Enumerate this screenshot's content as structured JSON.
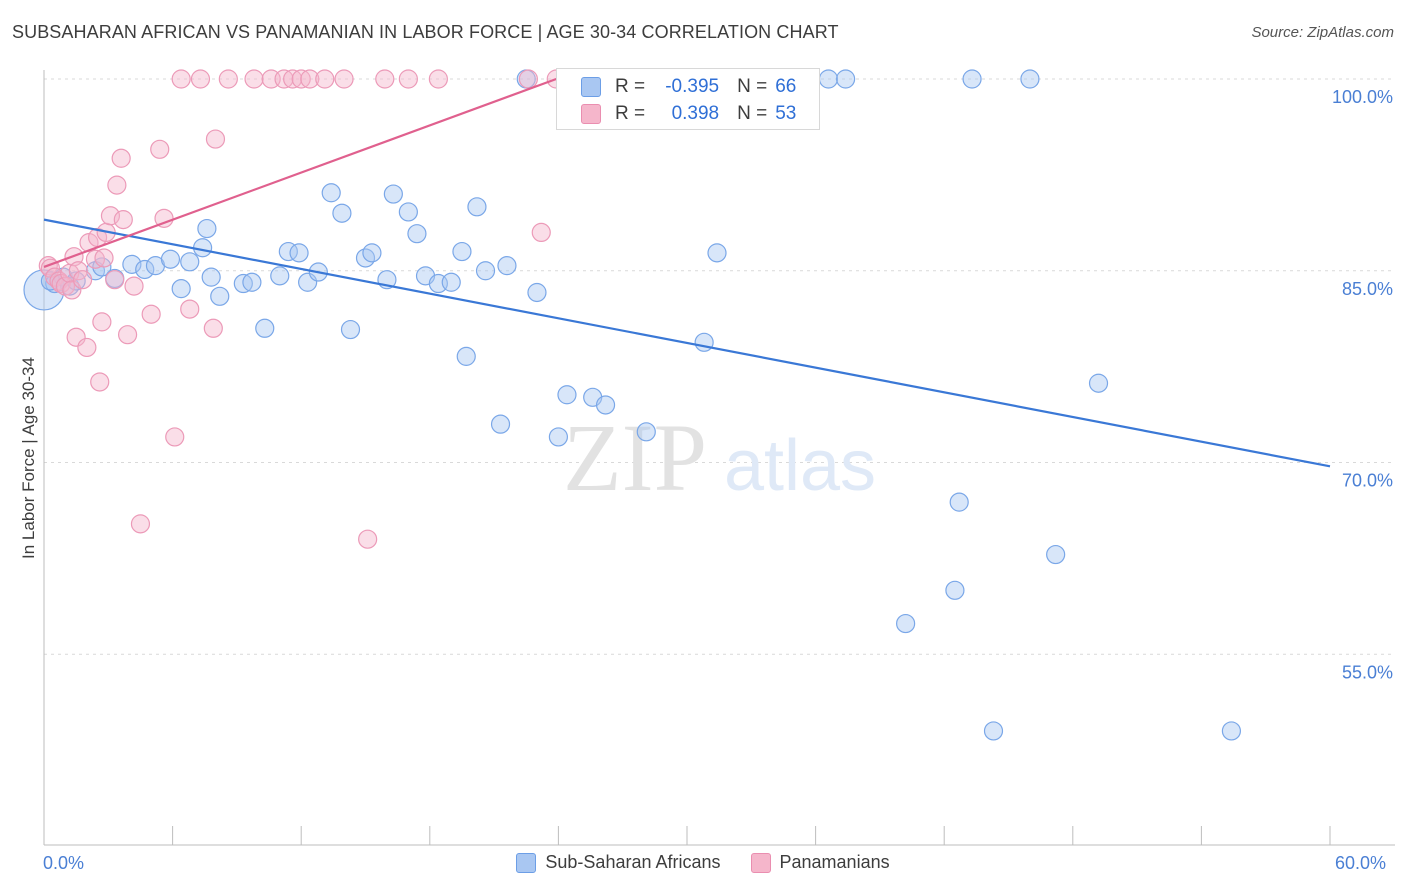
{
  "title": "SUBSAHARAN AFRICAN VS PANAMANIAN IN LABOR FORCE | AGE 30-34 CORRELATION CHART",
  "source": "Source: ZipAtlas.com",
  "watermark": {
    "zip": "ZIP",
    "atlas": "atlas"
  },
  "stats": {
    "blue": {
      "r_label": "R =",
      "r_value": "-0.395",
      "n_label": "N =",
      "n_value": "66"
    },
    "pink": {
      "r_label": "R =",
      "r_value": "0.398",
      "n_label": "N =",
      "n_value": "53"
    }
  },
  "colors": {
    "blue": "#3a78d6",
    "blue_fill": "#a9c7f2",
    "pink": "#e0608e",
    "pink_fill": "#f5b6cb",
    "tick_text": "#4a7fd4",
    "grid": "#d9d9d9"
  },
  "chart_data": {
    "type": "scatter",
    "title": "SUBSAHARAN AFRICAN VS PANAMANIAN IN LABOR FORCE | AGE 30-34 CORRELATION CHART",
    "xlabel": "",
    "ylabel": "In Labor Force | Age 30-34",
    "xlim": [
      0,
      60
    ],
    "ylim": [
      40,
      100
    ],
    "x_tick_labels": [
      "0.0%",
      "60.0%"
    ],
    "y_ticks": [
      {
        "value": 55,
        "label": "55.0%"
      },
      {
        "value": 70,
        "label": "70.0%"
      },
      {
        "value": 85,
        "label": "85.0%"
      },
      {
        "value": 100,
        "label": "100.0%"
      }
    ],
    "grid": true,
    "legend": "bottom",
    "series": [
      {
        "name": "Sub-Saharan Africans",
        "color": "#3a78d6",
        "trend": {
          "x": [
            0,
            60
          ],
          "y": [
            89.0,
            69.7
          ]
        },
        "points": [
          [
            0,
            83.5
          ],
          [
            0.5,
            84.0
          ],
          [
            0.9,
            84.5
          ],
          [
            1.2,
            83.8
          ],
          [
            1.5,
            84.2
          ],
          [
            2.4,
            85.0
          ],
          [
            2.7,
            85.3
          ],
          [
            3.3,
            84.4
          ],
          [
            4.1,
            85.5
          ],
          [
            4.7,
            85.1
          ],
          [
            5.2,
            85.4
          ],
          [
            5.9,
            85.9
          ],
          [
            6.4,
            83.6
          ],
          [
            6.8,
            85.7
          ],
          [
            7.4,
            86.8
          ],
          [
            7.6,
            88.3
          ],
          [
            7.8,
            84.5
          ],
          [
            8.2,
            83.0
          ],
          [
            9.3,
            84.0
          ],
          [
            9.7,
            84.1
          ],
          [
            10.3,
            80.5
          ],
          [
            11.0,
            84.6
          ],
          [
            11.4,
            86.5
          ],
          [
            11.9,
            86.4
          ],
          [
            12.3,
            84.1
          ],
          [
            12.8,
            84.9
          ],
          [
            13.4,
            91.1
          ],
          [
            13.9,
            89.5
          ],
          [
            14.3,
            80.4
          ],
          [
            15.0,
            86.0
          ],
          [
            15.3,
            86.4
          ],
          [
            16.0,
            84.3
          ],
          [
            16.3,
            91.0
          ],
          [
            17.0,
            89.6
          ],
          [
            17.4,
            87.9
          ],
          [
            17.8,
            84.6
          ],
          [
            18.4,
            84.0
          ],
          [
            19.0,
            84.1
          ],
          [
            19.5,
            86.5
          ],
          [
            19.7,
            78.3
          ],
          [
            20.2,
            90.0
          ],
          [
            20.6,
            85.0
          ],
          [
            21.3,
            73.0
          ],
          [
            21.6,
            85.4
          ],
          [
            22.5,
            100.0
          ],
          [
            23.0,
            83.3
          ],
          [
            24.0,
            72.0
          ],
          [
            24.4,
            75.3
          ],
          [
            25.6,
            75.1
          ],
          [
            26.2,
            74.5
          ],
          [
            28.1,
            72.4
          ],
          [
            28.7,
            100.0
          ],
          [
            30.8,
            79.4
          ],
          [
            31.4,
            86.4
          ],
          [
            36.6,
            100.0
          ],
          [
            37.4,
            100.0
          ],
          [
            40.2,
            57.4
          ],
          [
            42.5,
            60.0
          ],
          [
            42.7,
            66.9
          ],
          [
            43.3,
            100.0
          ],
          [
            44.3,
            49.0
          ],
          [
            46.0,
            100.0
          ],
          [
            47.2,
            62.8
          ],
          [
            49.2,
            76.2
          ],
          [
            55.4,
            49.0
          ],
          [
            0.3,
            84.2
          ]
        ]
      },
      {
        "name": "Panamanians",
        "color": "#e0608e",
        "trend": {
          "x": [
            0,
            23.9
          ],
          "y": [
            85.3,
            100.0
          ]
        },
        "points": [
          [
            0.2,
            85.4
          ],
          [
            0.3,
            85.2
          ],
          [
            0.5,
            84.5
          ],
          [
            0.7,
            84.2
          ],
          [
            0.8,
            84.0
          ],
          [
            1.0,
            83.8
          ],
          [
            1.2,
            84.8
          ],
          [
            1.3,
            83.5
          ],
          [
            1.4,
            86.1
          ],
          [
            1.5,
            79.8
          ],
          [
            1.6,
            85.0
          ],
          [
            1.8,
            84.3
          ],
          [
            2.0,
            79.0
          ],
          [
            2.1,
            87.2
          ],
          [
            2.4,
            85.9
          ],
          [
            2.5,
            87.6
          ],
          [
            2.6,
            76.3
          ],
          [
            2.7,
            81.0
          ],
          [
            2.8,
            86.0
          ],
          [
            2.9,
            88.0
          ],
          [
            3.1,
            89.3
          ],
          [
            3.3,
            84.3
          ],
          [
            3.4,
            91.7
          ],
          [
            3.6,
            93.8
          ],
          [
            3.7,
            89.0
          ],
          [
            3.9,
            80.0
          ],
          [
            4.2,
            83.8
          ],
          [
            4.5,
            65.2
          ],
          [
            5.0,
            81.6
          ],
          [
            5.4,
            94.5
          ],
          [
            5.6,
            89.1
          ],
          [
            6.1,
            72.0
          ],
          [
            6.4,
            100.0
          ],
          [
            6.8,
            82.0
          ],
          [
            7.3,
            100.0
          ],
          [
            7.9,
            80.5
          ],
          [
            8.0,
            95.3
          ],
          [
            8.6,
            100.0
          ],
          [
            9.8,
            100.0
          ],
          [
            10.6,
            100.0
          ],
          [
            11.2,
            100.0
          ],
          [
            11.6,
            100.0
          ],
          [
            12.0,
            100.0
          ],
          [
            12.4,
            100.0
          ],
          [
            13.1,
            100.0
          ],
          [
            14.0,
            100.0
          ],
          [
            15.1,
            64.0
          ],
          [
            15.9,
            100.0
          ],
          [
            17.0,
            100.0
          ],
          [
            18.4,
            100.0
          ],
          [
            22.6,
            100.0
          ],
          [
            23.2,
            88.0
          ],
          [
            23.9,
            100.0
          ]
        ]
      }
    ]
  }
}
